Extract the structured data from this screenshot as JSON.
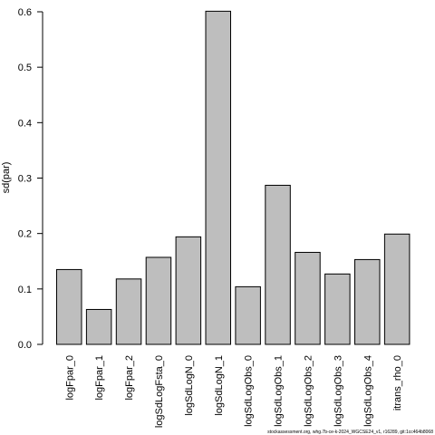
{
  "chart_data": {
    "type": "bar",
    "categories": [
      "logFpar_0",
      "logFpar_1",
      "logFpar_2",
      "logSdLogFsta_0",
      "logSdLogN_0",
      "logSdLogN_1",
      "logSdLogObs_0",
      "logSdLogObs_1",
      "logSdLogObs_2",
      "logSdLogObs_3",
      "logSdLogObs_4",
      "itrans_rho_0"
    ],
    "values": [
      0.135,
      0.063,
      0.118,
      0.157,
      0.194,
      0.601,
      0.104,
      0.287,
      0.166,
      0.127,
      0.153,
      0.199
    ],
    "ylabel": "sd(par)",
    "yticks": [
      0.0,
      0.1,
      0.2,
      0.3,
      0.4,
      0.5,
      0.6
    ],
    "ytick_labels": [
      "0.0",
      "0.1",
      "0.2",
      "0.3",
      "0.4",
      "0.5",
      "0.6"
    ],
    "ylim": [
      0,
      0.6
    ],
    "bar_color": "#bebebe",
    "grid": false,
    "caption": "stockassessment.org, whg.7b-ce-k-2024_WGCSE24_v1, r16289, git:1cc464b8068"
  }
}
